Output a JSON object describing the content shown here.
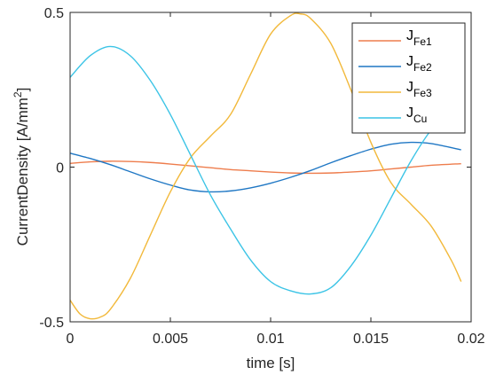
{
  "chart_data": {
    "type": "line",
    "xlabel": "time [s]",
    "ylabel_main": "CurrentDensity [A/mm",
    "ylabel_sup": "2",
    "ylabel_end": "]",
    "xlim": [
      0,
      0.02
    ],
    "ylim": [
      -0.5,
      0.5
    ],
    "x_ticks": [
      0,
      0.005,
      0.01,
      0.015,
      0.02
    ],
    "x_tick_labels": [
      "0",
      "0.005",
      "0.01",
      "0.015",
      "0.02"
    ],
    "y_ticks": [
      -0.5,
      0,
      0.5
    ],
    "y_tick_labels": [
      "-0.5",
      "0",
      "0.5"
    ],
    "grid": false,
    "legend_position": "top-right",
    "series": [
      {
        "name_main": "J",
        "name_sub": "Fe1",
        "color": "#EE7D4D",
        "x": [
          0,
          0.001,
          0.002,
          0.003,
          0.004,
          0.005,
          0.006,
          0.007,
          0.008,
          0.009,
          0.01,
          0.011,
          0.012,
          0.013,
          0.014,
          0.015,
          0.016,
          0.017,
          0.018,
          0.0195
        ],
        "y": [
          0.012,
          0.017,
          0.019,
          0.018,
          0.015,
          0.01,
          0.004,
          -0.002,
          -0.008,
          -0.012,
          -0.016,
          -0.019,
          -0.02,
          -0.019,
          -0.016,
          -0.012,
          -0.006,
          0.0,
          0.006,
          0.011
        ]
      },
      {
        "name_main": "J",
        "name_sub": "Fe2",
        "color": "#1F77C4",
        "x": [
          0,
          0.001,
          0.002,
          0.003,
          0.004,
          0.005,
          0.006,
          0.007,
          0.008,
          0.009,
          0.01,
          0.011,
          0.012,
          0.013,
          0.014,
          0.015,
          0.016,
          0.017,
          0.018,
          0.0195
        ],
        "y": [
          0.045,
          0.028,
          0.008,
          -0.015,
          -0.038,
          -0.058,
          -0.074,
          -0.08,
          -0.077,
          -0.067,
          -0.052,
          -0.033,
          -0.011,
          0.014,
          0.037,
          0.058,
          0.074,
          0.08,
          0.076,
          0.056
        ]
      },
      {
        "name_main": "J",
        "name_sub": "Fe3",
        "color": "#F2B93B",
        "x": [
          0,
          0.0005,
          0.001,
          0.0015,
          0.002,
          0.003,
          0.004,
          0.005,
          0.006,
          0.007,
          0.008,
          0.009,
          0.01,
          0.011,
          0.0115,
          0.012,
          0.013,
          0.014,
          0.015,
          0.016,
          0.017,
          0.018,
          0.019,
          0.0195
        ],
        "y": [
          -0.43,
          -0.475,
          -0.49,
          -0.485,
          -0.46,
          -0.36,
          -0.22,
          -0.08,
          0.03,
          0.1,
          0.17,
          0.3,
          0.43,
          0.49,
          0.495,
          0.48,
          0.4,
          0.25,
          0.08,
          -0.05,
          -0.12,
          -0.19,
          -0.3,
          -0.37
        ]
      },
      {
        "name_main": "J",
        "name_sub": "Cu",
        "color": "#3CC4E6",
        "x": [
          0,
          0.001,
          0.002,
          0.003,
          0.004,
          0.005,
          0.006,
          0.007,
          0.008,
          0.009,
          0.01,
          0.011,
          0.012,
          0.013,
          0.014,
          0.015,
          0.016,
          0.017,
          0.018,
          0.019,
          0.0195
        ],
        "y": [
          0.29,
          0.36,
          0.39,
          0.36,
          0.28,
          0.17,
          0.04,
          -0.09,
          -0.2,
          -0.3,
          -0.37,
          -0.4,
          -0.41,
          -0.39,
          -0.32,
          -0.22,
          -0.1,
          0.02,
          0.12,
          0.19,
          0.23
        ]
      }
    ]
  }
}
